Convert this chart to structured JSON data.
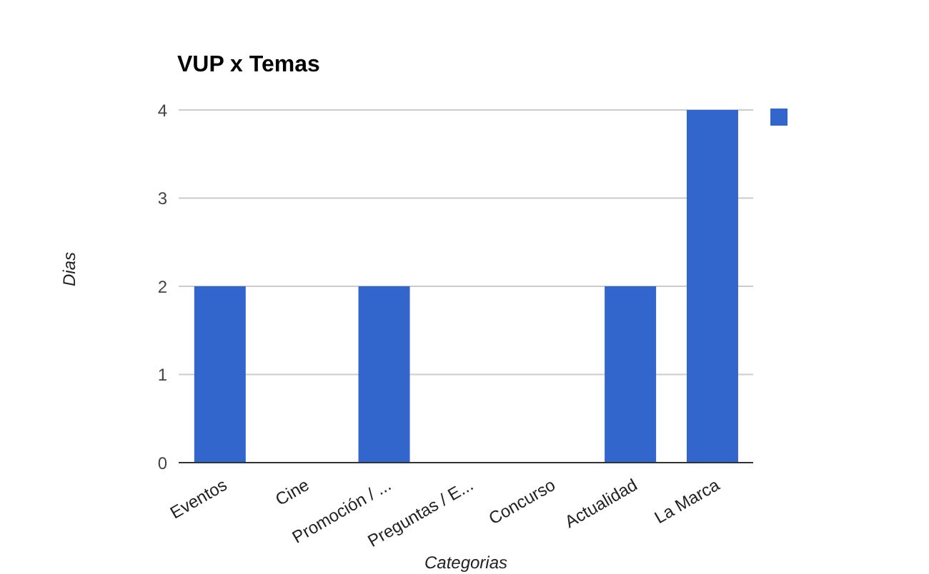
{
  "chart_data": {
    "type": "bar",
    "title": "VUP x Temas",
    "xlabel": "Categorias",
    "ylabel": "Dias",
    "categories": [
      "Eventos",
      "Cine",
      "Promoción / ...",
      "Preguntas / E...",
      "Concurso",
      "Actualidad",
      "La Marca"
    ],
    "series": [
      {
        "color": "#3366cc",
        "values": [
          2,
          0,
          2,
          0,
          0,
          2,
          4
        ]
      }
    ],
    "ylim": [
      0,
      4
    ],
    "yticks": [
      0,
      1,
      2,
      3,
      4
    ],
    "grid": "y"
  }
}
